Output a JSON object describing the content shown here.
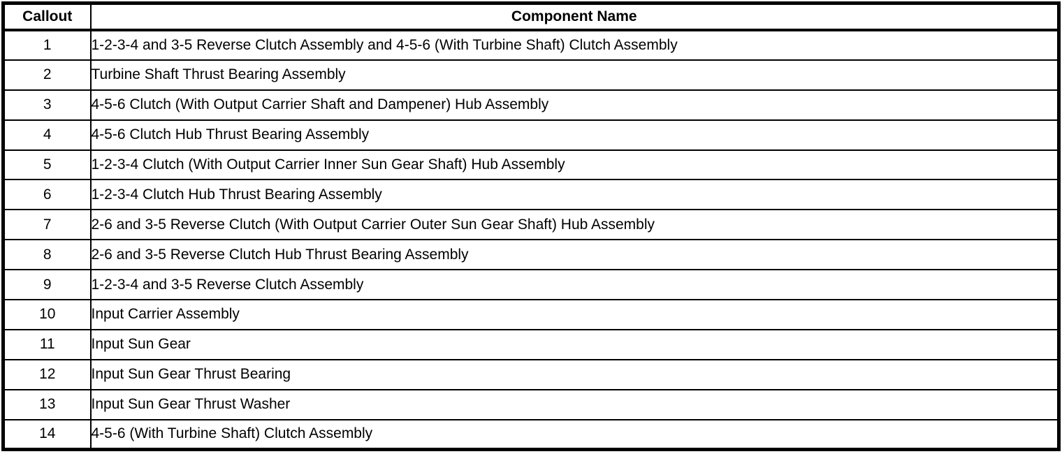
{
  "table": {
    "headers": {
      "callout": "Callout",
      "component_name": "Component Name"
    },
    "rows": [
      {
        "callout": "1",
        "name": "1-2-3-4 and 3-5 Reverse Clutch Assembly and 4-5-6 (With Turbine Shaft) Clutch Assembly"
      },
      {
        "callout": "2",
        "name": "Turbine Shaft Thrust Bearing Assembly"
      },
      {
        "callout": "3",
        "name": "4-5-6 Clutch (With Output Carrier Shaft and Dampener) Hub Assembly"
      },
      {
        "callout": "4",
        "name": "4-5-6 Clutch Hub Thrust Bearing Assembly"
      },
      {
        "callout": "5",
        "name": "1-2-3-4 Clutch (With Output Carrier Inner Sun Gear Shaft) Hub Assembly"
      },
      {
        "callout": "6",
        "name": "1-2-3-4 Clutch Hub Thrust Bearing Assembly"
      },
      {
        "callout": "7",
        "name": "2-6 and 3-5 Reverse Clutch (With Output Carrier Outer Sun Gear Shaft) Hub Assembly"
      },
      {
        "callout": "8",
        "name": "2-6 and 3-5 Reverse Clutch Hub Thrust Bearing Assembly"
      },
      {
        "callout": "9",
        "name": "1-2-3-4 and 3-5 Reverse Clutch Assembly"
      },
      {
        "callout": "10",
        "name": "Input Carrier Assembly"
      },
      {
        "callout": "11",
        "name": "Input Sun Gear"
      },
      {
        "callout": "12",
        "name": "Input Sun Gear Thrust Bearing"
      },
      {
        "callout": "13",
        "name": "Input Sun Gear Thrust Washer"
      },
      {
        "callout": "14",
        "name": "4-5-6 (With Turbine Shaft) Clutch Assembly"
      }
    ],
    "colors": {
      "border": "#000000",
      "background": "#ffffff",
      "text": "#000000"
    }
  }
}
